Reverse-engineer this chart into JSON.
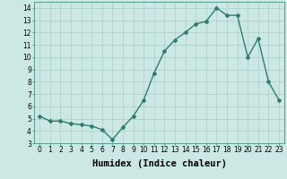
{
  "x": [
    0,
    1,
    2,
    3,
    4,
    5,
    6,
    7,
    8,
    9,
    10,
    11,
    12,
    13,
    14,
    15,
    16,
    17,
    18,
    19,
    20,
    21,
    22,
    23
  ],
  "y": [
    5.2,
    4.8,
    4.8,
    4.6,
    4.5,
    4.4,
    4.1,
    3.3,
    4.3,
    5.2,
    6.5,
    8.7,
    10.5,
    11.4,
    12.0,
    12.7,
    12.9,
    14.0,
    13.4,
    13.4,
    10.0,
    11.5,
    8.0,
    6.5
  ],
  "line_color": "#2e7d6e",
  "marker": "D",
  "marker_size": 2.0,
  "bg_color": "#cce8e4",
  "grid_color": "#aaccca",
  "xlabel": "Humidex (Indice chaleur)",
  "xlabel_fontsize": 7.5,
  "xlim": [
    -0.5,
    23.5
  ],
  "ylim": [
    3,
    14.5
  ],
  "yticks": [
    3,
    4,
    5,
    6,
    7,
    8,
    9,
    10,
    11,
    12,
    13,
    14
  ],
  "xticks": [
    0,
    1,
    2,
    3,
    4,
    5,
    6,
    7,
    8,
    9,
    10,
    11,
    12,
    13,
    14,
    15,
    16,
    17,
    18,
    19,
    20,
    21,
    22,
    23
  ],
  "tick_fontsize": 5.5,
  "line_width": 1.0
}
